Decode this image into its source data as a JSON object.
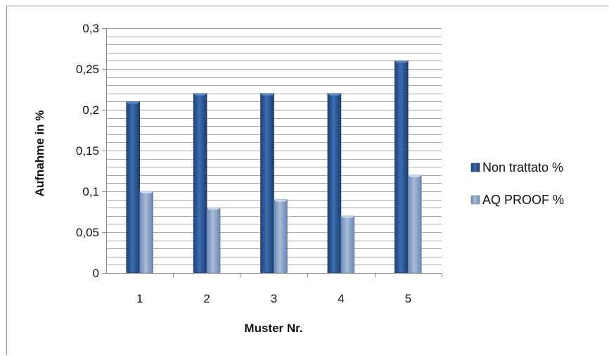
{
  "chart_data": {
    "type": "bar",
    "title": "",
    "xlabel": "Muster Nr.",
    "ylabel": "Aufnahme in %",
    "categories": [
      "1",
      "2",
      "3",
      "4",
      "5"
    ],
    "ylim": [
      0,
      0.3
    ],
    "y_ticks": [
      "0",
      "0,05",
      "0,1",
      "0,15",
      "0,2",
      "0,25",
      "0,3"
    ],
    "y_tick_values": [
      0,
      0.05,
      0.1,
      0.15,
      0.2,
      0.25,
      0.3
    ],
    "grid": true,
    "legend_position": "right",
    "series": [
      {
        "name": "Non trattato %",
        "values": [
          0.21,
          0.22,
          0.22,
          0.22,
          0.26
        ],
        "color": "#2e5a94"
      },
      {
        "name": "AQ PROOF %",
        "values": [
          0.1,
          0.08,
          0.09,
          0.07,
          0.12
        ],
        "color": "#8da5cc"
      }
    ]
  }
}
